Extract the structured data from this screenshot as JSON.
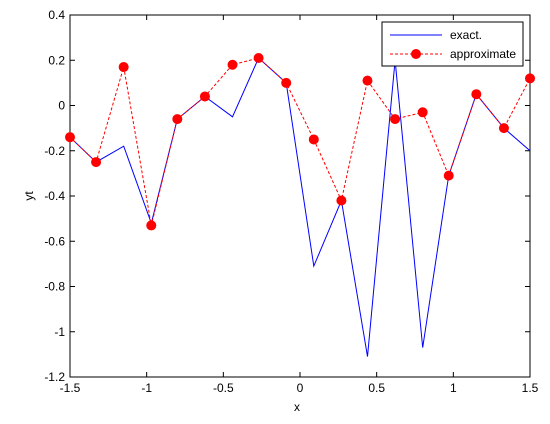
{
  "chart_data": {
    "type": "line",
    "title": "",
    "xlabel": "x",
    "ylabel": "yt",
    "xlim": [
      -1.5,
      1.5
    ],
    "ylim": [
      -1.2,
      0.4
    ],
    "xticks": [
      -1.5,
      -1,
      -0.5,
      0,
      0.5,
      1,
      1.5
    ],
    "xtick_labels": [
      "-1.5",
      "-1",
      "-0.5",
      "0",
      "0.5",
      "1",
      "1.5"
    ],
    "yticks": [
      -1.2,
      -1,
      -0.8,
      -0.6,
      -0.4,
      -0.2,
      0,
      0.2,
      0.4
    ],
    "ytick_labels": [
      "-1.2",
      "-1",
      "-0.8",
      "-0.6",
      "-0.4",
      "-0.2",
      "0",
      "0.2",
      "0.4"
    ],
    "grid": false,
    "legend_position": "top-right",
    "series": [
      {
        "name": "exact.",
        "style": "solid",
        "marker": "none",
        "color": "#0000ff",
        "x": [
          -1.5,
          -1.33,
          -1.15,
          -0.97,
          -0.8,
          -0.62,
          -0.44,
          -0.27,
          -0.09,
          0.09,
          0.27,
          0.44,
          0.62,
          0.8,
          0.97,
          1.15,
          1.33,
          1.5
        ],
        "y": [
          -0.14,
          -0.25,
          -0.18,
          -0.52,
          -0.06,
          0.04,
          -0.05,
          0.21,
          0.1,
          -0.71,
          -0.42,
          -1.11,
          0.2,
          -1.07,
          -0.31,
          0.05,
          -0.1,
          -0.2
        ]
      },
      {
        "name": "approximate",
        "style": "dashed",
        "marker": "circle",
        "color": "#ff0000",
        "x": [
          -1.5,
          -1.33,
          -1.15,
          -0.97,
          -0.8,
          -0.62,
          -0.44,
          -0.27,
          -0.09,
          0.09,
          0.27,
          0.44,
          0.62,
          0.8,
          0.97,
          1.15,
          1.33,
          1.5
        ],
        "y": [
          -0.14,
          -0.25,
          0.17,
          -0.53,
          -0.06,
          0.04,
          0.18,
          0.21,
          0.1,
          -0.15,
          -0.42,
          0.11,
          -0.06,
          -0.03,
          -0.31,
          0.05,
          -0.1,
          0.12
        ]
      }
    ]
  }
}
